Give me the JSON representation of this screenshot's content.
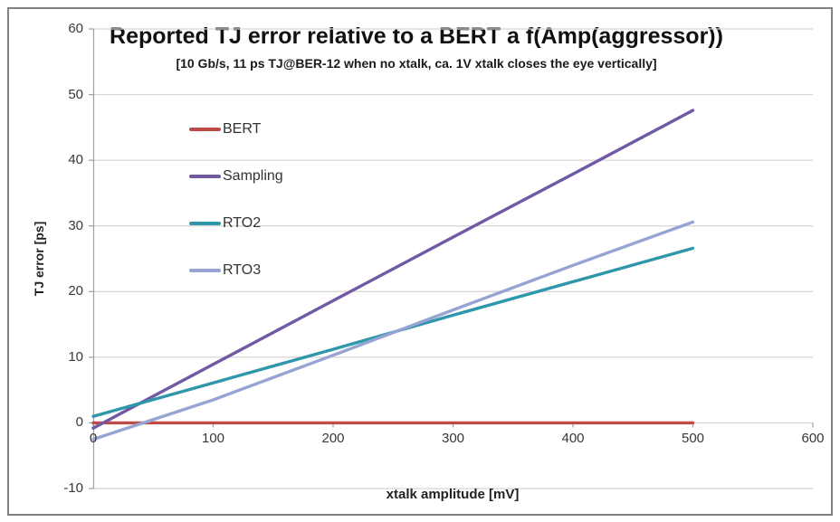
{
  "chart_data": {
    "type": "line",
    "title": "Reported TJ error relative to a BERT a f(Amp(aggressor))",
    "subtitle": "[10 Gb/s, 11 ps TJ@BER-12 when no xtalk, ca. 1V xtalk closes the eye vertically]",
    "xlabel": "xtalk amplitude [mV]",
    "ylabel": "TJ error [ps]",
    "xlim": [
      0,
      600
    ],
    "ylim": [
      -10,
      60
    ],
    "xticks": [
      0,
      100,
      200,
      300,
      400,
      500,
      600
    ],
    "yticks": [
      -10,
      0,
      10,
      20,
      30,
      40,
      50,
      60
    ],
    "grid": "horizontal",
    "legend_position": "inside-top-left",
    "x": [
      0,
      100,
      200,
      300,
      400,
      500
    ],
    "series": [
      {
        "name": "BERT",
        "color": "#be4b48",
        "values": [
          0,
          0,
          0,
          0,
          0,
          0
        ]
      },
      {
        "name": "Sampling",
        "color": "#7159a3",
        "values": [
          -0.8,
          8.9,
          18.6,
          28.3,
          37.9,
          47.6
        ]
      },
      {
        "name": "RTO2",
        "color": "#2f97ab",
        "values": [
          1.0,
          6.1,
          11.2,
          16.4,
          21.5,
          26.6
        ]
      },
      {
        "name": "RTO3",
        "color": "#97a4d3",
        "values": [
          -2.5,
          3.5,
          10.3,
          17.2,
          24.0,
          30.6
        ]
      }
    ]
  },
  "colors": {
    "gridline": "#d5d5d5",
    "axis": "#9f9f9f",
    "tick_text": "#383838",
    "frame_border": "#818181"
  }
}
